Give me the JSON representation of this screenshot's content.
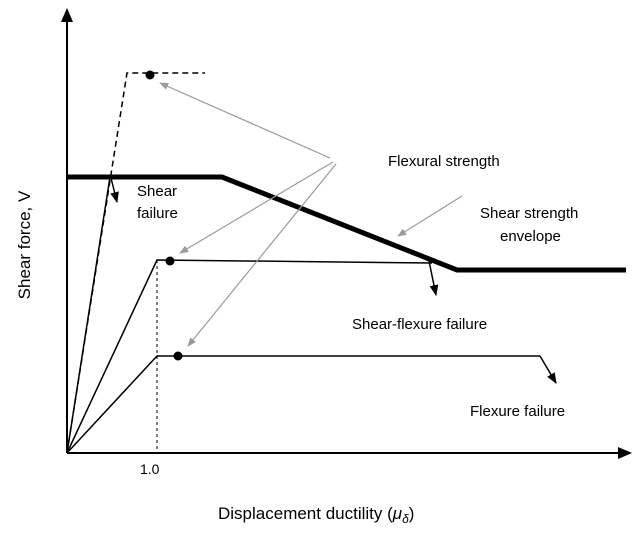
{
  "diagram": {
    "y_axis_label": "Shear force, V",
    "x_axis_label": "Displacement ductility (",
    "x_axis_symbol": "μ",
    "x_axis_subscript": "δ",
    "x_axis_close": ")",
    "x_tick": "1.0",
    "annotations": {
      "flexural_strength": "Flexural strength",
      "shear_line1": "Shear",
      "shear_line2": "failure",
      "envelope_line1": "Shear strength",
      "envelope_line2": "envelope",
      "shear_flexure_failure": "Shear-flexure failure",
      "flexure_failure": "Flexure failure"
    },
    "colors": {
      "ink": "#000000",
      "leader_arrow": "#9a9a9a",
      "background": "#ffffff"
    }
  }
}
